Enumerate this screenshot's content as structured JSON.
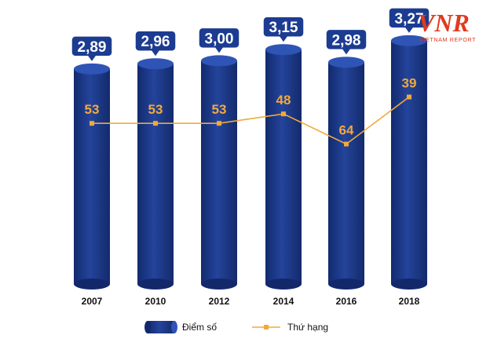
{
  "logo": {
    "mark": "VNR",
    "text": "VIETNAM REPORT"
  },
  "colors": {
    "bar": "#1d3a8f",
    "bar_dark": "#13286b",
    "bar_top": "#2e54b5",
    "label_box": "#1c3c91",
    "line": "#f2a93b",
    "rank_text": "#f2a93b",
    "logo_red": "#e03a1e"
  },
  "chart_data": {
    "type": "bar",
    "categories": [
      "2007",
      "2010",
      "2012",
      "2014",
      "2016",
      "2018"
    ],
    "ylim": [
      0,
      3.5
    ],
    "series": [
      {
        "name": "Điểm số",
        "type": "bar",
        "values": [
          2.89,
          2.96,
          3.0,
          3.15,
          2.98,
          3.27
        ],
        "labels": [
          "2,89",
          "2,96",
          "3,00",
          "3,15",
          "2,98",
          "3,27"
        ]
      },
      {
        "name": "Thứ hạng",
        "type": "line",
        "values": [
          53,
          53,
          53,
          48,
          64,
          39
        ],
        "labels": [
          "53",
          "53",
          "53",
          "48",
          "64",
          "39"
        ]
      }
    ],
    "rank_axis": {
      "top": 30,
      "bottom": 80,
      "note": "inverted: lower rank is higher"
    },
    "legend": {
      "position": "bottom",
      "items": [
        {
          "label": "Điểm số",
          "shape": "cylinder"
        },
        {
          "label": "Thứ hạng",
          "shape": "line-marker"
        }
      ]
    }
  }
}
